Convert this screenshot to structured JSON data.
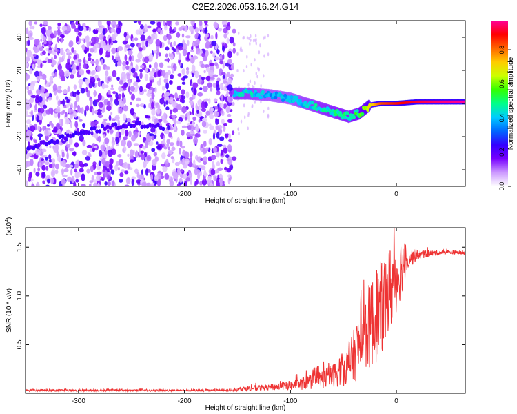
{
  "title": "C2E2.2026.053.16.24.G14",
  "chart_data": [
    {
      "type": "heatmap",
      "name": "spectrogram",
      "xlabel": "Height of straight line (km)",
      "ylabel": "Frequency (Hz)",
      "xlim": [
        -350,
        65
      ],
      "ylim": [
        -50,
        50
      ],
      "xticks": [
        -300,
        -200,
        -100,
        0
      ],
      "yticks": [
        -40,
        -20,
        0,
        20,
        40
      ],
      "xtick_labels": [
        "-300",
        "-200",
        "-100",
        "0"
      ],
      "ytick_labels": [
        "-40",
        "-20",
        "0",
        "20",
        "40"
      ],
      "noisy_region_until_km": -153,
      "ridge": {
        "description": "Main signal frequency track",
        "x": [
          -153,
          -140,
          -120,
          -100,
          -80,
          -60,
          -45,
          -35,
          -25,
          -15,
          0,
          20,
          40,
          65
        ],
        "y": [
          6,
          6,
          5,
          3,
          -1,
          -5,
          -8,
          -6,
          -1,
          0,
          0,
          1,
          1,
          1
        ],
        "amplitude": [
          0.45,
          0.45,
          0.4,
          0.4,
          0.45,
          0.5,
          0.5,
          0.55,
          0.7,
          0.85,
          0.9,
          0.95,
          0.98,
          1.0
        ]
      },
      "secondary_track": {
        "x": [
          -350,
          -330,
          -310,
          -290,
          -270,
          -250,
          -230,
          -220
        ],
        "y": [
          -28,
          -24,
          -20,
          -17,
          -14,
          -13,
          -14,
          -14
        ]
      }
    },
    {
      "type": "line",
      "name": "snr",
      "xlabel": "Height of straight line (km)",
      "ylabel": "SNR (10 * v/v)",
      "scale_label": "(x10",
      "scale_exp": "4",
      "scale_close": ")",
      "xlim": [
        -350,
        65
      ],
      "ylim": [
        0,
        1.7
      ],
      "xticks": [
        -300,
        -200,
        -100,
        0
      ],
      "yticks": [
        0.5,
        1.0,
        1.5
      ],
      "xtick_labels": [
        "-300",
        "-200",
        "-100",
        "0"
      ],
      "ytick_labels": [
        "0.5",
        "1.0",
        "1.5"
      ],
      "color": "#ee3333",
      "envelope": {
        "x": [
          -350,
          -250,
          -160,
          -140,
          -120,
          -100,
          -80,
          -60,
          -45,
          -35,
          -25,
          -15,
          -5,
          5,
          10,
          20,
          35,
          50,
          65
        ],
        "y": [
          0.03,
          0.03,
          0.03,
          0.05,
          0.06,
          0.08,
          0.12,
          0.18,
          0.28,
          0.5,
          0.7,
          0.85,
          1.1,
          1.3,
          1.38,
          1.42,
          1.44,
          1.45,
          1.44
        ],
        "noise": [
          0.01,
          0.01,
          0.01,
          0.03,
          0.03,
          0.05,
          0.08,
          0.12,
          0.2,
          0.35,
          0.45,
          0.5,
          0.45,
          0.3,
          0.12,
          0.05,
          0.03,
          0.02,
          0.02
        ]
      }
    }
  ],
  "colorbar": {
    "label": "Normalized spectral amplitude",
    "ticks": [
      0.0,
      0.2,
      0.4,
      0.6,
      0.8
    ],
    "tick_labels": [
      "0.0",
      "0.2",
      "0.4",
      "0.6",
      "0.8"
    ],
    "range": [
      0,
      0.97
    ],
    "colors": [
      "#ffffff",
      "#cc99ff",
      "#7700ff",
      "#3300ff",
      "#0066ff",
      "#00ccff",
      "#00ff88",
      "#33ff00",
      "#ccff00",
      "#ffcc00",
      "#ff6600",
      "#ff0000",
      "#ff0099"
    ]
  }
}
